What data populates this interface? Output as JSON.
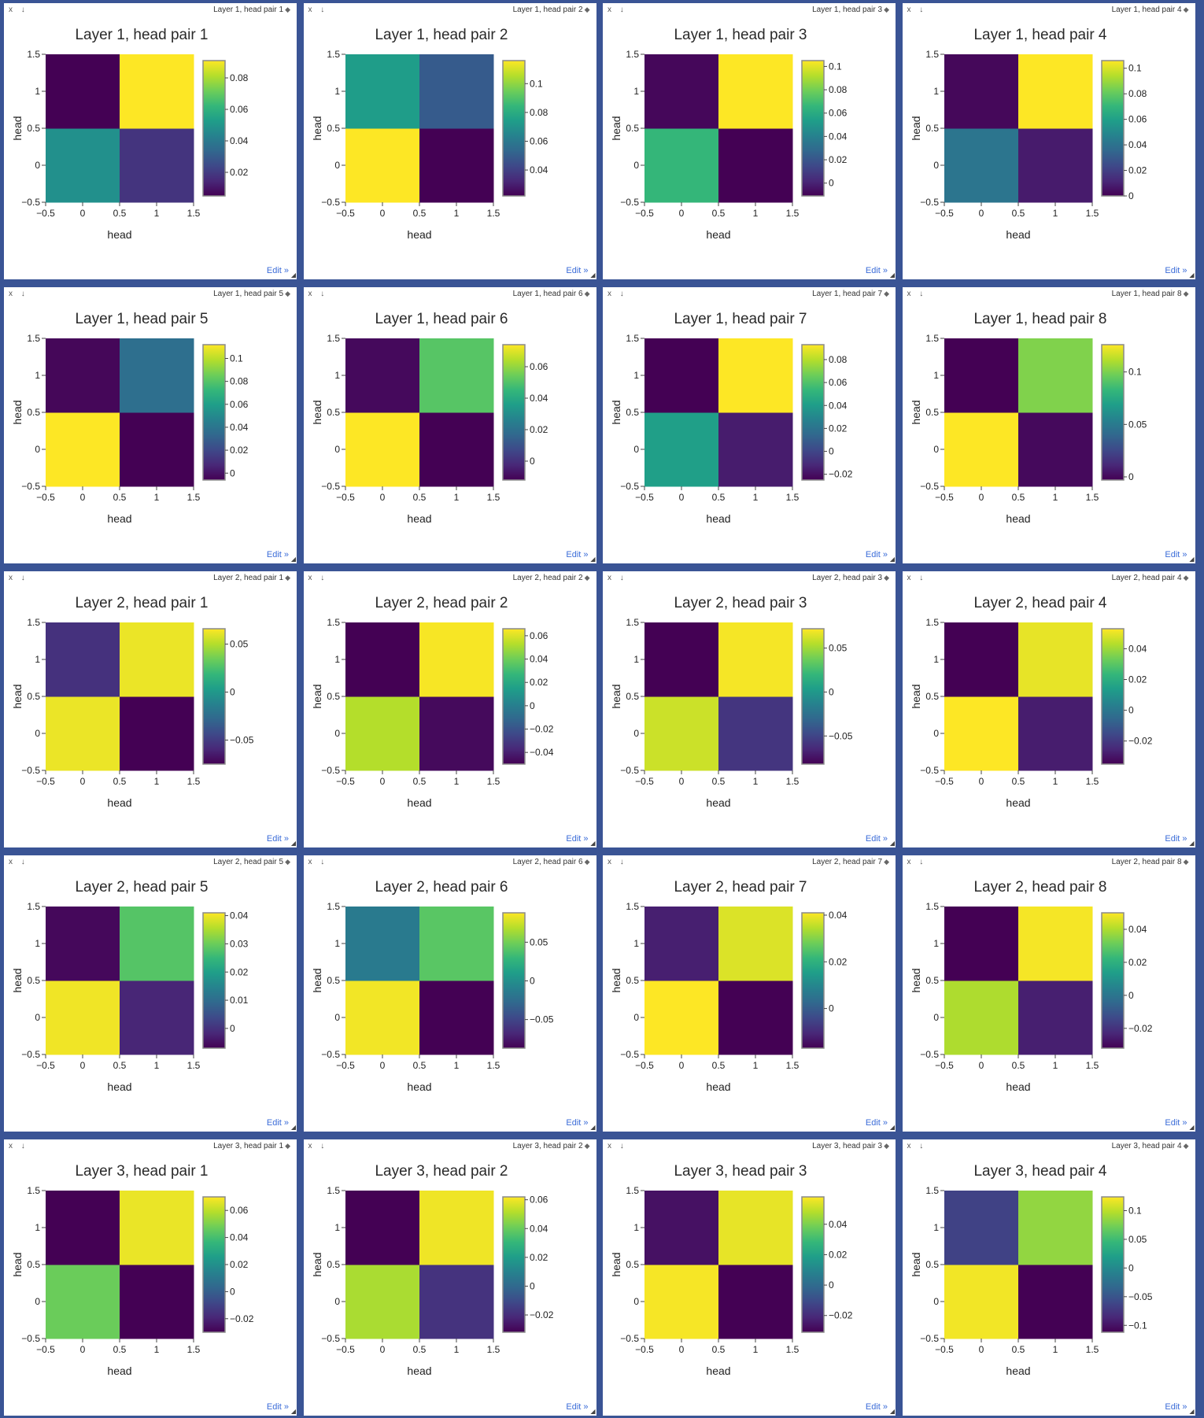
{
  "ui": {
    "window_controls": "x ↓",
    "edit_label": "Edit »",
    "tag_icon": "tag-icon",
    "resize_icon": "resize-corner-icon"
  },
  "colorscale": "viridis",
  "chart_data": [
    {
      "type": "heatmap",
      "tag": "Layer 1, head pair 1",
      "title": "Layer 1, head pair 1",
      "xlabel": "head",
      "ylabel": "head",
      "x": [
        0,
        1
      ],
      "y": [
        0,
        1
      ],
      "z": [
        [
          0.048,
          0.018
        ],
        [
          0.005,
          0.091
        ]
      ],
      "cmin": 0.005,
      "cmax": 0.091,
      "xticks": [
        "−0.5",
        "0",
        "0.5",
        "1",
        "1.5"
      ],
      "yticks": [
        "−0.5",
        "0",
        "0.5",
        "1",
        "1.5"
      ],
      "cbar_ticks": [
        {
          "v": 0.02,
          "l": "0.02"
        },
        {
          "v": 0.04,
          "l": "0.04"
        },
        {
          "v": 0.06,
          "l": "0.06"
        },
        {
          "v": 0.08,
          "l": "0.08"
        }
      ]
    },
    {
      "type": "heatmap",
      "tag": "Layer 1, head pair 2",
      "title": "Layer 1, head pair 2",
      "xlabel": "head",
      "ylabel": "head",
      "x": [
        0,
        1
      ],
      "y": [
        0,
        1
      ],
      "z": [
        [
          0.116,
          0.022
        ],
        [
          0.074,
          0.049
        ]
      ],
      "cmin": 0.022,
      "cmax": 0.116,
      "xticks": [
        "−0.5",
        "0",
        "0.5",
        "1",
        "1.5"
      ],
      "yticks": [
        "−0.5",
        "0",
        "0.5",
        "1",
        "1.5"
      ],
      "cbar_ticks": [
        {
          "v": 0.04,
          "l": "0.04"
        },
        {
          "v": 0.06,
          "l": "0.06"
        },
        {
          "v": 0.08,
          "l": "0.08"
        },
        {
          "v": 0.1,
          "l": "0.1"
        }
      ]
    },
    {
      "type": "heatmap",
      "tag": "Layer 1, head pair 3",
      "title": "Layer 1, head pair 3",
      "xlabel": "head",
      "ylabel": "head",
      "x": [
        0,
        1
      ],
      "y": [
        0,
        1
      ],
      "z": [
        [
          0.066,
          -0.011
        ],
        [
          -0.009,
          0.105
        ]
      ],
      "cmin": -0.011,
      "cmax": 0.105,
      "xticks": [
        "−0.5",
        "0",
        "0.5",
        "1",
        "1.5"
      ],
      "yticks": [
        "−0.5",
        "0",
        "0.5",
        "1",
        "1.5"
      ],
      "cbar_ticks": [
        {
          "v": 0,
          "l": "0"
        },
        {
          "v": 0.02,
          "l": "0.02"
        },
        {
          "v": 0.04,
          "l": "0.04"
        },
        {
          "v": 0.06,
          "l": "0.06"
        },
        {
          "v": 0.08,
          "l": "0.08"
        },
        {
          "v": 0.1,
          "l": "0.1"
        }
      ]
    },
    {
      "type": "heatmap",
      "tag": "Layer 1, head pair 4",
      "title": "Layer 1, head pair 4",
      "xlabel": "head",
      "ylabel": "head",
      "x": [
        0,
        1
      ],
      "y": [
        0,
        1
      ],
      "z": [
        [
          0.041,
          0.008
        ],
        [
          0.002,
          0.106
        ]
      ],
      "cmin": 0.0,
      "cmax": 0.106,
      "xticks": [
        "−0.5",
        "0",
        "0.5",
        "1",
        "1.5"
      ],
      "yticks": [
        "−0.5",
        "0",
        "0.5",
        "1",
        "1.5"
      ],
      "cbar_ticks": [
        {
          "v": 0,
          "l": "0"
        },
        {
          "v": 0.02,
          "l": "0.02"
        },
        {
          "v": 0.04,
          "l": "0.04"
        },
        {
          "v": 0.06,
          "l": "0.06"
        },
        {
          "v": 0.08,
          "l": "0.08"
        },
        {
          "v": 0.1,
          "l": "0.1"
        }
      ]
    },
    {
      "type": "heatmap",
      "tag": "Layer 1, head pair 5",
      "title": "Layer 1, head pair 5",
      "xlabel": "head",
      "ylabel": "head",
      "x": [
        0,
        1
      ],
      "y": [
        0,
        1
      ],
      "z": [
        [
          0.112,
          -0.006
        ],
        [
          -0.004,
          0.037
        ]
      ],
      "cmin": -0.006,
      "cmax": 0.112,
      "xticks": [
        "−0.5",
        "0",
        "0.5",
        "1",
        "1.5"
      ],
      "yticks": [
        "−0.5",
        "0",
        "0.5",
        "1",
        "1.5"
      ],
      "cbar_ticks": [
        {
          "v": 0,
          "l": "0"
        },
        {
          "v": 0.02,
          "l": "0.02"
        },
        {
          "v": 0.04,
          "l": "0.04"
        },
        {
          "v": 0.06,
          "l": "0.06"
        },
        {
          "v": 0.08,
          "l": "0.08"
        },
        {
          "v": 0.1,
          "l": "0.1"
        }
      ]
    },
    {
      "type": "heatmap",
      "tag": "Layer 1, head pair 6",
      "title": "Layer 1, head pair 6",
      "xlabel": "head",
      "ylabel": "head",
      "x": [
        0,
        1
      ],
      "y": [
        0,
        1
      ],
      "z": [
        [
          0.074,
          -0.012
        ],
        [
          -0.01,
          0.051
        ]
      ],
      "cmin": -0.012,
      "cmax": 0.074,
      "xticks": [
        "−0.5",
        "0",
        "0.5",
        "1",
        "1.5"
      ],
      "yticks": [
        "−0.5",
        "0",
        "0.5",
        "1",
        "1.5"
      ],
      "cbar_ticks": [
        {
          "v": 0,
          "l": "0"
        },
        {
          "v": 0.02,
          "l": "0.02"
        },
        {
          "v": 0.04,
          "l": "0.04"
        },
        {
          "v": 0.06,
          "l": "0.06"
        }
      ]
    },
    {
      "type": "heatmap",
      "tag": "Layer 1, head pair 7",
      "title": "Layer 1, head pair 7",
      "xlabel": "head",
      "ylabel": "head",
      "x": [
        0,
        1
      ],
      "y": [
        0,
        1
      ],
      "z": [
        [
          0.041,
          -0.016
        ],
        [
          -0.025,
          0.093
        ]
      ],
      "cmin": -0.025,
      "cmax": 0.093,
      "xticks": [
        "−0.5",
        "0",
        "0.5",
        "1",
        "1.5"
      ],
      "yticks": [
        "−0.5",
        "0",
        "0.5",
        "1",
        "1.5"
      ],
      "cbar_ticks": [
        {
          "v": -0.02,
          "l": "−0.02"
        },
        {
          "v": 0,
          "l": "0"
        },
        {
          "v": 0.02,
          "l": "0.02"
        },
        {
          "v": 0.04,
          "l": "0.04"
        },
        {
          "v": 0.06,
          "l": "0.06"
        },
        {
          "v": 0.08,
          "l": "0.08"
        }
      ]
    },
    {
      "type": "heatmap",
      "tag": "Layer 1, head pair 8",
      "title": "Layer 1, head pair 8",
      "xlabel": "head",
      "ylabel": "head",
      "x": [
        0,
        1
      ],
      "y": [
        0,
        1
      ],
      "z": [
        [
          0.126,
          0.0
        ],
        [
          -0.003,
          0.101
        ]
      ],
      "cmin": -0.003,
      "cmax": 0.126,
      "xticks": [
        "−0.5",
        "0",
        "0.5",
        "1",
        "1.5"
      ],
      "yticks": [
        "−0.5",
        "0",
        "0.5",
        "1",
        "1.5"
      ],
      "cbar_ticks": [
        {
          "v": 0,
          "l": "0"
        },
        {
          "v": 0.05,
          "l": "0.05"
        },
        {
          "v": 0.1,
          "l": "0.1"
        }
      ]
    },
    {
      "type": "heatmap",
      "tag": "Layer 2, head pair 1",
      "title": "Layer 2, head pair 1",
      "xlabel": "head",
      "ylabel": "head",
      "x": [
        0,
        1
      ],
      "y": [
        0,
        1
      ],
      "z": [
        [
          0.062,
          -0.075
        ],
        [
          -0.055,
          0.062
        ]
      ],
      "cmin": -0.075,
      "cmax": 0.066,
      "xticks": [
        "−0.5",
        "0",
        "0.5",
        "1",
        "1.5"
      ],
      "yticks": [
        "−0.5",
        "0",
        "0.5",
        "1",
        "1.5"
      ],
      "cbar_ticks": [
        {
          "v": -0.05,
          "l": "−0.05"
        },
        {
          "v": 0,
          "l": "0"
        },
        {
          "v": 0.05,
          "l": "0.05"
        }
      ]
    },
    {
      "type": "heatmap",
      "tag": "Layer 2, head pair 2",
      "title": "Layer 2, head pair 2",
      "xlabel": "head",
      "ylabel": "head",
      "x": [
        0,
        1
      ],
      "y": [
        0,
        1
      ],
      "z": [
        [
          0.053,
          -0.047
        ],
        [
          -0.05,
          0.065
        ]
      ],
      "cmin": -0.05,
      "cmax": 0.066,
      "xticks": [
        "−0.5",
        "0",
        "0.5",
        "1",
        "1.5"
      ],
      "yticks": [
        "−0.5",
        "0",
        "0.5",
        "1",
        "1.5"
      ],
      "cbar_ticks": [
        {
          "v": -0.04,
          "l": "−0.04"
        },
        {
          "v": -0.02,
          "l": "−0.02"
        },
        {
          "v": 0,
          "l": "0"
        },
        {
          "v": 0.02,
          "l": "0.02"
        },
        {
          "v": 0.04,
          "l": "0.04"
        },
        {
          "v": 0.06,
          "l": "0.06"
        }
      ]
    },
    {
      "type": "heatmap",
      "tag": "Layer 2, head pair 3",
      "title": "Layer 2, head pair 3",
      "xlabel": "head",
      "ylabel": "head",
      "x": [
        0,
        1
      ],
      "y": [
        0,
        1
      ],
      "z": [
        [
          0.06,
          -0.058
        ],
        [
          -0.082,
          0.07
        ]
      ],
      "cmin": -0.082,
      "cmax": 0.072,
      "xticks": [
        "−0.5",
        "0",
        "0.5",
        "1",
        "1.5"
      ],
      "yticks": [
        "−0.5",
        "0",
        "0.5",
        "1",
        "1.5"
      ],
      "cbar_ticks": [
        {
          "v": -0.05,
          "l": "−0.05"
        },
        {
          "v": 0,
          "l": "0"
        },
        {
          "v": 0.05,
          "l": "0.05"
        }
      ]
    },
    {
      "type": "heatmap",
      "tag": "Layer 2, head pair 4",
      "title": "Layer 2, head pair 4",
      "xlabel": "head",
      "ylabel": "head",
      "x": [
        0,
        1
      ],
      "y": [
        0,
        1
      ],
      "z": [
        [
          0.053,
          -0.028
        ],
        [
          -0.035,
          0.05
        ]
      ],
      "cmin": -0.035,
      "cmax": 0.053,
      "xticks": [
        "−0.5",
        "0",
        "0.5",
        "1",
        "1.5"
      ],
      "yticks": [
        "−0.5",
        "0",
        "0.5",
        "1",
        "1.5"
      ],
      "cbar_ticks": [
        {
          "v": -0.02,
          "l": "−0.02"
        },
        {
          "v": 0,
          "l": "0"
        },
        {
          "v": 0.02,
          "l": "0.02"
        },
        {
          "v": 0.04,
          "l": "0.04"
        }
      ]
    },
    {
      "type": "heatmap",
      "tag": "Layer 2, head pair 5",
      "title": "Layer 2, head pair 5",
      "xlabel": "head",
      "ylabel": "head",
      "x": [
        0,
        1
      ],
      "y": [
        0,
        1
      ],
      "z": [
        [
          0.04,
          -0.002
        ],
        [
          -0.006,
          0.028
        ]
      ],
      "cmin": -0.007,
      "cmax": 0.041,
      "xticks": [
        "−0.5",
        "0",
        "0.5",
        "1",
        "1.5"
      ],
      "yticks": [
        "−0.5",
        "0",
        "0.5",
        "1",
        "1.5"
      ],
      "cbar_ticks": [
        {
          "v": 0,
          "l": "0"
        },
        {
          "v": 0.01,
          "l": "0.01"
        },
        {
          "v": 0.02,
          "l": "0.02"
        },
        {
          "v": 0.03,
          "l": "0.03"
        },
        {
          "v": 0.04,
          "l": "0.04"
        }
      ]
    },
    {
      "type": "heatmap",
      "tag": "Layer 2, head pair 6",
      "title": "Layer 2, head pair 6",
      "xlabel": "head",
      "ylabel": "head",
      "x": [
        0,
        1
      ],
      "y": [
        0,
        1
      ],
      "z": [
        [
          0.085,
          -0.087
        ],
        [
          -0.015,
          0.042
        ]
      ],
      "cmin": -0.087,
      "cmax": 0.088,
      "xticks": [
        "−0.5",
        "0",
        "0.5",
        "1",
        "1.5"
      ],
      "yticks": [
        "−0.5",
        "0",
        "0.5",
        "1",
        "1.5"
      ],
      "cbar_ticks": [
        {
          "v": -0.05,
          "l": "−0.05"
        },
        {
          "v": 0,
          "l": "0"
        },
        {
          "v": 0.05,
          "l": "0.05"
        }
      ]
    },
    {
      "type": "heatmap",
      "tag": "Layer 2, head pair 7",
      "title": "Layer 2, head pair 7",
      "xlabel": "head",
      "ylabel": "head",
      "x": [
        0,
        1
      ],
      "y": [
        0,
        1
      ],
      "z": [
        [
          0.041,
          -0.017
        ],
        [
          -0.012,
          0.038
        ]
      ],
      "cmin": -0.017,
      "cmax": 0.041,
      "xticks": [
        "−0.5",
        "0",
        "0.5",
        "1",
        "1.5"
      ],
      "yticks": [
        "−0.5",
        "0",
        "0.5",
        "1",
        "1.5"
      ],
      "cbar_ticks": [
        {
          "v": 0,
          "l": "0"
        },
        {
          "v": 0.02,
          "l": "0.02"
        },
        {
          "v": 0.04,
          "l": "0.04"
        }
      ]
    },
    {
      "type": "heatmap",
      "tag": "Layer 2, head pair 8",
      "title": "Layer 2, head pair 8",
      "xlabel": "head",
      "ylabel": "head",
      "x": [
        0,
        1
      ],
      "y": [
        0,
        1
      ],
      "z": [
        [
          0.04,
          -0.025
        ],
        [
          -0.032,
          0.049
        ]
      ],
      "cmin": -0.032,
      "cmax": 0.05,
      "xticks": [
        "−0.5",
        "0",
        "0.5",
        "1",
        "1.5"
      ],
      "yticks": [
        "−0.5",
        "0",
        "0.5",
        "1",
        "1.5"
      ],
      "cbar_ticks": [
        {
          "v": -0.02,
          "l": "−0.02"
        },
        {
          "v": 0,
          "l": "0"
        },
        {
          "v": 0.02,
          "l": "0.02"
        },
        {
          "v": 0.04,
          "l": "0.04"
        }
      ]
    },
    {
      "type": "heatmap",
      "tag": "Layer 3, head pair 1",
      "title": "Layer 3, head pair 1",
      "xlabel": "head",
      "ylabel": "head",
      "x": [
        0,
        1
      ],
      "y": [
        0,
        1
      ],
      "z": [
        [
          0.047,
          -0.03
        ],
        [
          -0.03,
          0.067
        ]
      ],
      "cmin": -0.03,
      "cmax": 0.07,
      "xticks": [
        "−0.5",
        "0",
        "0.5",
        "1",
        "1.5"
      ],
      "yticks": [
        "−0.5",
        "0",
        "0.5",
        "1",
        "1.5"
      ],
      "cbar_ticks": [
        {
          "v": -0.02,
          "l": "−0.02"
        },
        {
          "v": 0,
          "l": "0"
        },
        {
          "v": 0.02,
          "l": "0.02"
        },
        {
          "v": 0.04,
          "l": "0.04"
        },
        {
          "v": 0.06,
          "l": "0.06"
        }
      ]
    },
    {
      "type": "heatmap",
      "tag": "Layer 3, head pair 2",
      "title": "Layer 3, head pair 2",
      "xlabel": "head",
      "ylabel": "head",
      "x": [
        0,
        1
      ],
      "y": [
        0,
        1
      ],
      "z": [
        [
          0.05,
          -0.018
        ],
        [
          -0.032,
          0.06
        ]
      ],
      "cmin": -0.032,
      "cmax": 0.062,
      "xticks": [
        "−0.5",
        "0",
        "0.5",
        "1",
        "1.5"
      ],
      "yticks": [
        "−0.5",
        "0",
        "0.5",
        "1",
        "1.5"
      ],
      "cbar_ticks": [
        {
          "v": -0.02,
          "l": "−0.02"
        },
        {
          "v": 0,
          "l": "0"
        },
        {
          "v": 0.02,
          "l": "0.02"
        },
        {
          "v": 0.04,
          "l": "0.04"
        },
        {
          "v": 0.06,
          "l": "0.06"
        }
      ]
    },
    {
      "type": "heatmap",
      "tag": "Layer 3, head pair 3",
      "title": "Layer 3, head pair 3",
      "xlabel": "head",
      "ylabel": "head",
      "x": [
        0,
        1
      ],
      "y": [
        0,
        1
      ],
      "z": [
        [
          0.057,
          -0.031
        ],
        [
          -0.027,
          0.055
        ]
      ],
      "cmin": -0.031,
      "cmax": 0.058,
      "xticks": [
        "−0.5",
        "0",
        "0.5",
        "1",
        "1.5"
      ],
      "yticks": [
        "−0.5",
        "0",
        "0.5",
        "1",
        "1.5"
      ],
      "cbar_ticks": [
        {
          "v": -0.02,
          "l": "−0.02"
        },
        {
          "v": 0,
          "l": "0"
        },
        {
          "v": 0.02,
          "l": "0.02"
        },
        {
          "v": 0.04,
          "l": "0.04"
        }
      ]
    },
    {
      "type": "heatmap",
      "tag": "Layer 3, head pair 4",
      "title": "Layer 3, head pair 4",
      "xlabel": "head",
      "ylabel": "head",
      "x": [
        0,
        1
      ],
      "y": [
        0,
        1
      ],
      "z": [
        [
          0.12,
          -0.112
        ],
        [
          -0.065,
          0.085
        ]
      ],
      "cmin": -0.112,
      "cmax": 0.124,
      "xticks": [
        "−0.5",
        "0",
        "0.5",
        "1",
        "1.5"
      ],
      "yticks": [
        "−0.5",
        "0",
        "0.5",
        "1",
        "1.5"
      ],
      "cbar_ticks": [
        {
          "v": -0.1,
          "l": "−0.1"
        },
        {
          "v": -0.05,
          "l": "−0.05"
        },
        {
          "v": 0,
          "l": "0"
        },
        {
          "v": 0.05,
          "l": "0.05"
        },
        {
          "v": 0.1,
          "l": "0.1"
        }
      ]
    }
  ]
}
